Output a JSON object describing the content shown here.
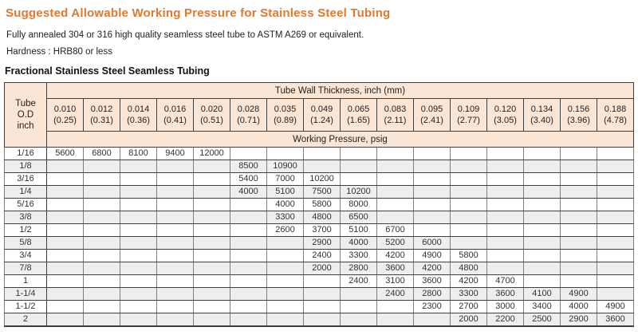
{
  "page": {
    "title": "Suggested Allowable Working Pressure for Stainless Steel Tubing",
    "line1": "Fully annealed 304 or 316 high quality seamless steel tube to ASTM A269 or equivalent.",
    "line2": "Hardness : HRB80 or less",
    "section_title": "Fractional Stainless Steel Seamless Tubing"
  },
  "colors": {
    "accent_orange": "#e2792f",
    "header_peach": "#fbe5d5",
    "stripe_gray": "#eeeeee",
    "grid_dark": "#3f3f3f",
    "grid_light": "#7f7f7f"
  },
  "table": {
    "corner_header": "Tube\nO.D\ninch",
    "thickness_header": "Tube Wall Thickness, inch (mm)",
    "pressure_header": "Working Pressure, psig",
    "columns": [
      {
        "inch": "0.010",
        "mm": "(0.25)"
      },
      {
        "inch": "0.012",
        "mm": "(0.31)"
      },
      {
        "inch": "0.014",
        "mm": "(0.36)"
      },
      {
        "inch": "0.016",
        "mm": "(0.41)"
      },
      {
        "inch": "0.020",
        "mm": "(0.51)"
      },
      {
        "inch": "0.028",
        "mm": "(0.71)"
      },
      {
        "inch": "0.035",
        "mm": "(0.89)"
      },
      {
        "inch": "0.049",
        "mm": "(1.24)"
      },
      {
        "inch": "0.065",
        "mm": "(1.65)"
      },
      {
        "inch": "0.083",
        "mm": "(2.11)"
      },
      {
        "inch": "0.095",
        "mm": "(2.41)"
      },
      {
        "inch": "0.109",
        "mm": "(2.77)"
      },
      {
        "inch": "0.120",
        "mm": "(3.05)"
      },
      {
        "inch": "0.134",
        "mm": "(3.40)"
      },
      {
        "inch": "0.156",
        "mm": "(3.96)"
      },
      {
        "inch": "0.188",
        "mm": "(4.78)"
      }
    ],
    "rows": [
      {
        "od": "1/16",
        "values": [
          "5600",
          "6800",
          "8100",
          "9400",
          "12000",
          "",
          "",
          "",
          "",
          "",
          "",
          "",
          "",
          "",
          "",
          ""
        ]
      },
      {
        "od": "1/8",
        "values": [
          "",
          "",
          "",
          "",
          "",
          "8500",
          "10900",
          "",
          "",
          "",
          "",
          "",
          "",
          "",
          "",
          ""
        ]
      },
      {
        "od": "3/16",
        "values": [
          "",
          "",
          "",
          "",
          "",
          "5400",
          "7000",
          "10200",
          "",
          "",
          "",
          "",
          "",
          "",
          "",
          ""
        ]
      },
      {
        "od": "1/4",
        "values": [
          "",
          "",
          "",
          "",
          "",
          "4000",
          "5100",
          "7500",
          "10200",
          "",
          "",
          "",
          "",
          "",
          "",
          ""
        ]
      },
      {
        "od": "5/16",
        "values": [
          "",
          "",
          "",
          "",
          "",
          "",
          "4000",
          "5800",
          "8000",
          "",
          "",
          "",
          "",
          "",
          "",
          ""
        ]
      },
      {
        "od": "3/8",
        "values": [
          "",
          "",
          "",
          "",
          "",
          "",
          "3300",
          "4800",
          "6500",
          "",
          "",
          "",
          "",
          "",
          "",
          ""
        ]
      },
      {
        "od": "1/2",
        "values": [
          "",
          "",
          "",
          "",
          "",
          "",
          "2600",
          "3700",
          "5100",
          "6700",
          "",
          "",
          "",
          "",
          "",
          ""
        ]
      },
      {
        "od": "5/8",
        "values": [
          "",
          "",
          "",
          "",
          "",
          "",
          "",
          "2900",
          "4000",
          "5200",
          "6000",
          "",
          "",
          "",
          "",
          ""
        ]
      },
      {
        "od": "3/4",
        "values": [
          "",
          "",
          "",
          "",
          "",
          "",
          "",
          "2400",
          "3300",
          "4200",
          "4900",
          "5800",
          "",
          "",
          "",
          ""
        ]
      },
      {
        "od": "7/8",
        "values": [
          "",
          "",
          "",
          "",
          "",
          "",
          "",
          "2000",
          "2800",
          "3600",
          "4200",
          "4800",
          "",
          "",
          "",
          ""
        ]
      },
      {
        "od": "1",
        "values": [
          "",
          "",
          "",
          "",
          "",
          "",
          "",
          "",
          "2400",
          "3100",
          "3600",
          "4200",
          "4700",
          "",
          "",
          ""
        ]
      },
      {
        "od": "1-1/4",
        "values": [
          "",
          "",
          "",
          "",
          "",
          "",
          "",
          "",
          "",
          "2400",
          "2800",
          "3300",
          "3600",
          "4100",
          "4900",
          ""
        ]
      },
      {
        "od": "1-1/2",
        "values": [
          "",
          "",
          "",
          "",
          "",
          "",
          "",
          "",
          "",
          "",
          "2300",
          "2700",
          "3000",
          "3400",
          "4000",
          "4900"
        ]
      },
      {
        "od": "2",
        "values": [
          "",
          "",
          "",
          "",
          "",
          "",
          "",
          "",
          "",
          "",
          "",
          "2000",
          "2200",
          "2500",
          "2900",
          "3600"
        ]
      }
    ]
  }
}
